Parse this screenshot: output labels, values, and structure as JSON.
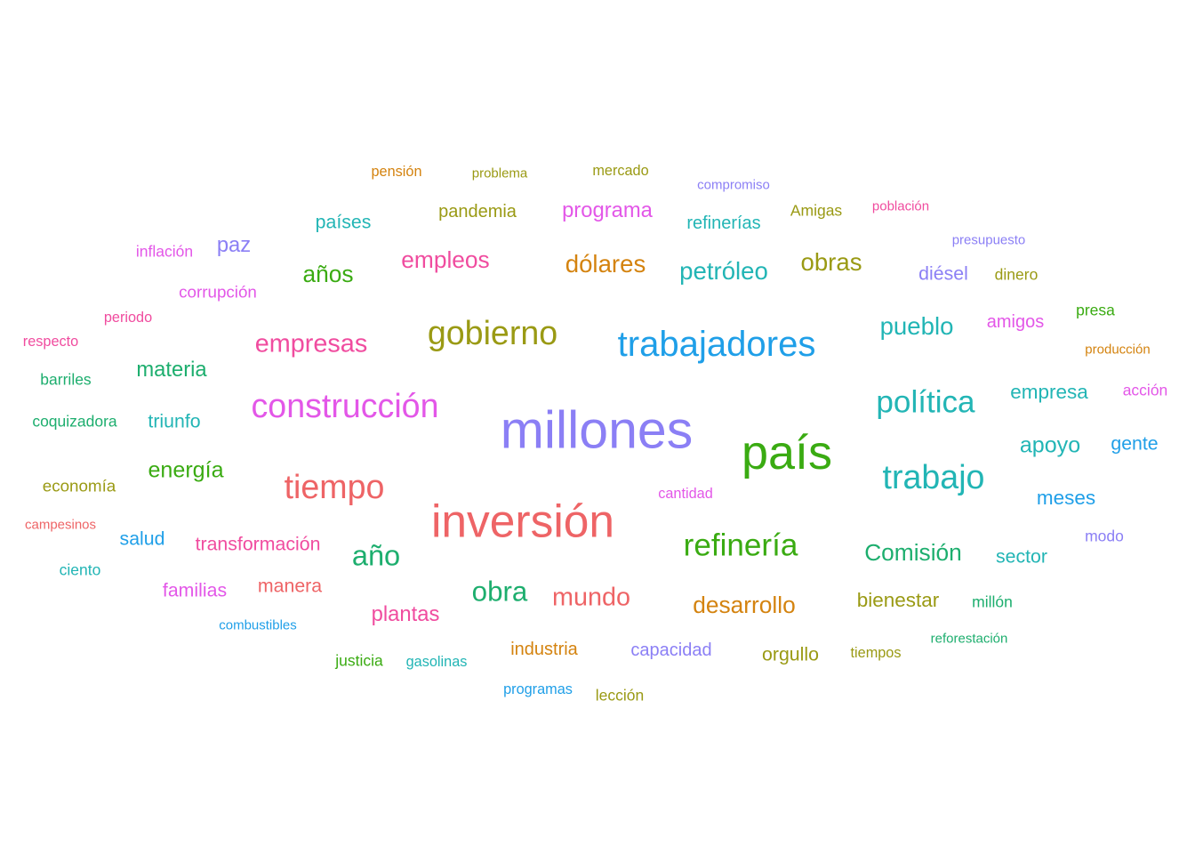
{
  "words": [
    {
      "text": "millones",
      "color": "#8b7ff5",
      "weight": 100
    },
    {
      "text": "país",
      "color": "#3aab12",
      "weight": 92
    },
    {
      "text": "inversión",
      "color": "#ee6466",
      "weight": 88
    },
    {
      "text": "trabajadores",
      "color": "#1f9fe8",
      "weight": 70
    },
    {
      "text": "gobierno",
      "color": "#9a9a14",
      "weight": 66
    },
    {
      "text": "construcción",
      "color": "#e357e8",
      "weight": 66
    },
    {
      "text": "tiempo",
      "color": "#ee6466",
      "weight": 66
    },
    {
      "text": "trabajo",
      "color": "#22b5b5",
      "weight": 66
    },
    {
      "text": "política",
      "color": "#22b5b5",
      "weight": 62
    },
    {
      "text": "refinería",
      "color": "#3aab12",
      "weight": 62
    },
    {
      "text": "año",
      "color": "#1dae6e",
      "weight": 58
    },
    {
      "text": "obra",
      "color": "#1dae6e",
      "weight": 56
    },
    {
      "text": "empresas",
      "color": "#f04c9f",
      "weight": 52
    },
    {
      "text": "mundo",
      "color": "#ee6466",
      "weight": 52
    },
    {
      "text": "petróleo",
      "color": "#22b5b5",
      "weight": 50
    },
    {
      "text": "obras",
      "color": "#9a9a14",
      "weight": 50
    },
    {
      "text": "dólares",
      "color": "#d4830f",
      "weight": 50
    },
    {
      "text": "pueblo",
      "color": "#22b5b5",
      "weight": 50
    },
    {
      "text": "Comisión",
      "color": "#1dae6e",
      "weight": 48
    },
    {
      "text": "desarrollo",
      "color": "#d4830f",
      "weight": 48
    },
    {
      "text": "empleos",
      "color": "#f04c9f",
      "weight": 48
    },
    {
      "text": "años",
      "color": "#3aab12",
      "weight": 48
    },
    {
      "text": "energía",
      "color": "#3aab12",
      "weight": 46
    },
    {
      "text": "apoyo",
      "color": "#22b5b5",
      "weight": 46
    },
    {
      "text": "plantas",
      "color": "#f04c9f",
      "weight": 44
    },
    {
      "text": "materia",
      "color": "#1dae6e",
      "weight": 44
    },
    {
      "text": "paz",
      "color": "#8b7ff5",
      "weight": 44
    },
    {
      "text": "programa",
      "color": "#e357e8",
      "weight": 44
    },
    {
      "text": "bienestar",
      "color": "#9a9a14",
      "weight": 42
    },
    {
      "text": "empresa",
      "color": "#22b5b5",
      "weight": 42
    },
    {
      "text": "meses",
      "color": "#1f9fe8",
      "weight": 42
    },
    {
      "text": "sector",
      "color": "#22b5b5",
      "weight": 40
    },
    {
      "text": "triunfo",
      "color": "#22b5b5",
      "weight": 40
    },
    {
      "text": "salud",
      "color": "#1f9fe8",
      "weight": 40
    },
    {
      "text": "transformación",
      "color": "#f04c9f",
      "weight": 40
    },
    {
      "text": "manera",
      "color": "#ee6466",
      "weight": 40
    },
    {
      "text": "familias",
      "color": "#e357e8",
      "weight": 40
    },
    {
      "text": "gente",
      "color": "#1f9fe8",
      "weight": 40
    },
    {
      "text": "países",
      "color": "#22b5b5",
      "weight": 40
    },
    {
      "text": "orgullo",
      "color": "#9a9a14",
      "weight": 40
    },
    {
      "text": "diésel",
      "color": "#8b7ff5",
      "weight": 40
    },
    {
      "text": "amigos",
      "color": "#e357e8",
      "weight": 38
    },
    {
      "text": "capacidad",
      "color": "#8b7ff5",
      "weight": 38
    },
    {
      "text": "industria",
      "color": "#d4830f",
      "weight": 38
    },
    {
      "text": "pandemia",
      "color": "#9a9a14",
      "weight": 38
    },
    {
      "text": "refinerías",
      "color": "#22b5b5",
      "weight": 38
    },
    {
      "text": "economía",
      "color": "#9a9a14",
      "weight": 36
    },
    {
      "text": "corrupción",
      "color": "#e357e8",
      "weight": 36
    },
    {
      "text": "coquizadora",
      "color": "#1dae6e",
      "weight": 34
    },
    {
      "text": "barriles",
      "color": "#1dae6e",
      "weight": 34
    },
    {
      "text": "ciento",
      "color": "#22b5b5",
      "weight": 34
    },
    {
      "text": "dinero",
      "color": "#9a9a14",
      "weight": 34
    },
    {
      "text": "Amigas",
      "color": "#9a9a14",
      "weight": 34
    },
    {
      "text": "acción",
      "color": "#e357e8",
      "weight": 34
    },
    {
      "text": "presa",
      "color": "#3aab12",
      "weight": 34
    },
    {
      "text": "millón",
      "color": "#1dae6e",
      "weight": 34
    },
    {
      "text": "modo",
      "color": "#8b7ff5",
      "weight": 34
    },
    {
      "text": "justicia",
      "color": "#3aab12",
      "weight": 34
    },
    {
      "text": "lección",
      "color": "#9a9a14",
      "weight": 34
    },
    {
      "text": "inflación",
      "color": "#e357e8",
      "weight": 34
    },
    {
      "text": "cantidad",
      "color": "#e357e8",
      "weight": 32
    },
    {
      "text": "pensión",
      "color": "#d4830f",
      "weight": 32
    },
    {
      "text": "mercado",
      "color": "#9a9a14",
      "weight": 32
    },
    {
      "text": "tiempos",
      "color": "#9a9a14",
      "weight": 32
    },
    {
      "text": "gasolinas",
      "color": "#22b5b5",
      "weight": 32
    },
    {
      "text": "programas",
      "color": "#1f9fe8",
      "weight": 32
    },
    {
      "text": "periodo",
      "color": "#f04c9f",
      "weight": 32
    },
    {
      "text": "respecto",
      "color": "#f04c9f",
      "weight": 32
    },
    {
      "text": "problema",
      "color": "#9a9a14",
      "weight": 30
    },
    {
      "text": "campesinos",
      "color": "#ee6466",
      "weight": 30
    },
    {
      "text": "combustibles",
      "color": "#1f9fe8",
      "weight": 30
    },
    {
      "text": "población",
      "color": "#f04c9f",
      "weight": 30
    },
    {
      "text": "producción",
      "color": "#d4830f",
      "weight": 30
    },
    {
      "text": "reforestación",
      "color": "#1dae6e",
      "weight": 30
    },
    {
      "text": "presupuesto",
      "color": "#8b7ff5",
      "weight": 30
    },
    {
      "text": "compromiso",
      "color": "#8b7ff5",
      "weight": 30
    }
  ]
}
